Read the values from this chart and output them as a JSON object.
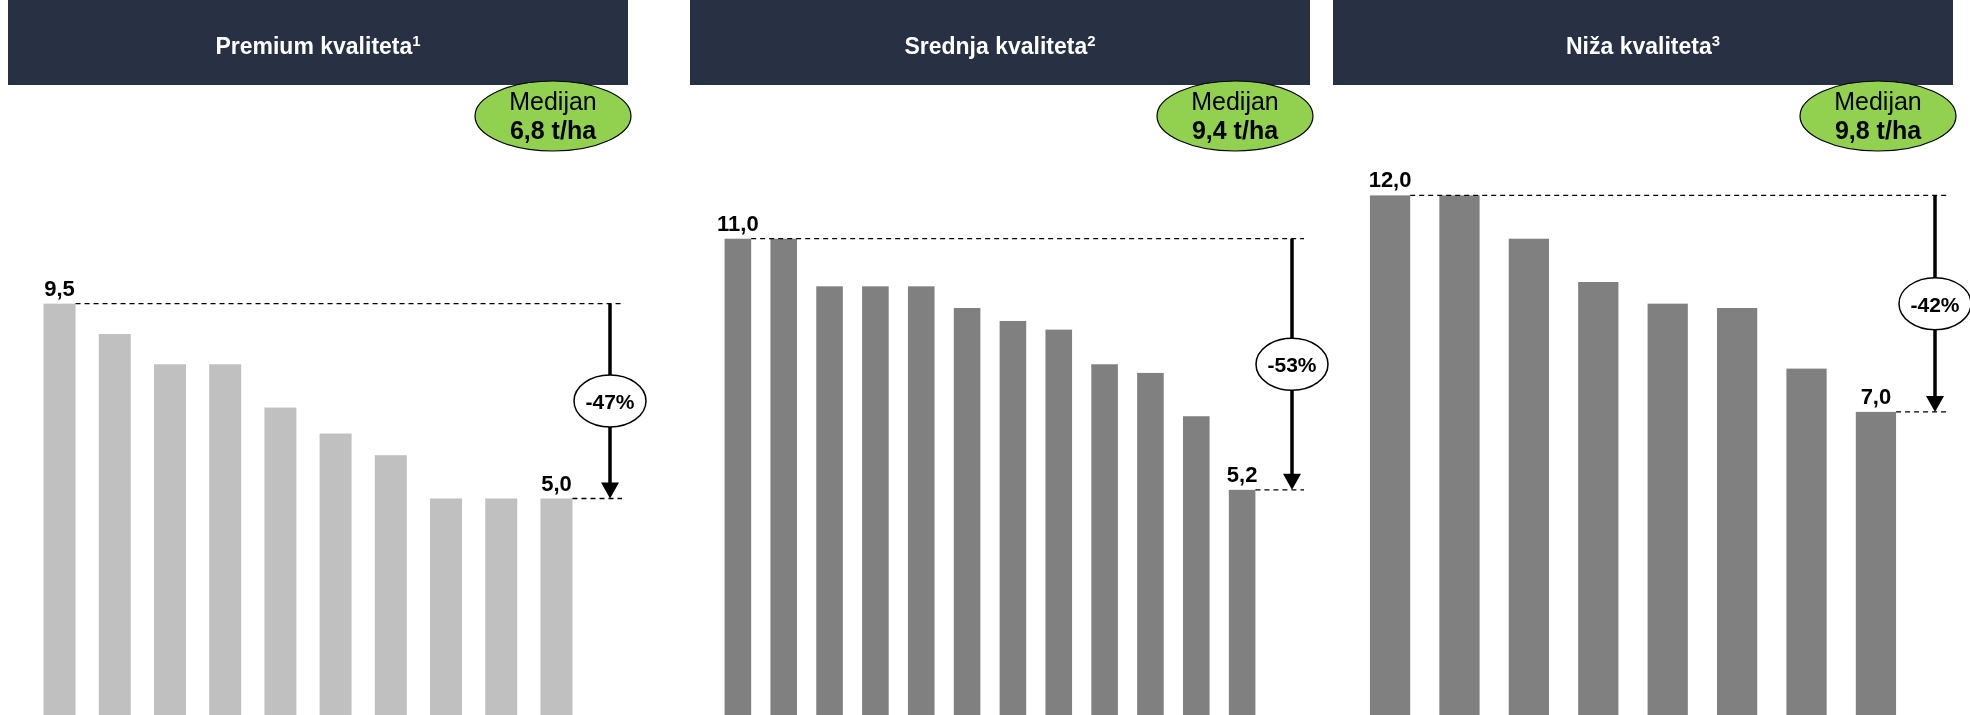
{
  "chart_data": [
    {
      "type": "bar",
      "title": "Premium kvaliteta$^{1}$",
      "categories": [
        null,
        null,
        null,
        null,
        null,
        null,
        null,
        null,
        null,
        null
      ],
      "values": [
        9.5,
        8.8,
        8.1,
        8.1,
        7.1,
        6.5,
        6.0,
        5.0,
        5.0,
        5.0
      ],
      "color": "#c0c0c0",
      "value_labels": [
        "9,5",
        null,
        null,
        null,
        null,
        null,
        null,
        null,
        null,
        "5,0"
      ],
      "annotations": [
        "Medijan",
        "6,8 t/ha",
        "-47%"
      ],
      "ref_lines": [
        {
          "axis": "y",
          "value": 9.5,
          "line_style": "dashed",
          "color": "#000000"
        },
        {
          "axis": "y",
          "value": 5.0,
          "line_style": "dashed",
          "color": "#000000"
        }
      ]
    },
    {
      "type": "bar",
      "title": "Srednja kvaliteta$^{2}$",
      "categories": [
        null,
        null,
        null,
        null,
        null,
        null,
        null,
        null,
        null,
        null,
        null,
        null
      ],
      "values": [
        11.0,
        11.0,
        9.9,
        9.9,
        9.9,
        9.4,
        9.1,
        8.9,
        8.1,
        7.9,
        6.9,
        5.2
      ],
      "color": "#808080",
      "value_labels": [
        "11,0",
        null,
        null,
        null,
        null,
        null,
        null,
        null,
        null,
        null,
        null,
        "5,2"
      ],
      "annotations": [
        "Medijan",
        "9,4 t/ha",
        "-53%"
      ],
      "ref_lines": [
        {
          "axis": "y",
          "value": 11.0,
          "line_style": "dashed",
          "color": "#000000"
        },
        {
          "axis": "y",
          "value": 5.2,
          "line_style": "dashed",
          "color": "#000000"
        }
      ]
    },
    {
      "type": "bar",
      "title": "Niža kvaliteta$^{3}$",
      "categories": [
        null,
        null,
        null,
        null,
        null,
        null,
        null,
        null
      ],
      "values": [
        12.0,
        12.0,
        11.0,
        10.0,
        9.5,
        9.4,
        8.0,
        7.0
      ],
      "color": "#808080",
      "value_labels": [
        "12,0",
        null,
        null,
        null,
        null,
        null,
        null,
        "7,0"
      ],
      "annotations": [
        "Medijan",
        "9,8 t/ha",
        "-42%"
      ],
      "ref_lines": [
        {
          "axis": "y",
          "value": 12.0,
          "line_style": "dashed",
          "color": "#000000"
        },
        {
          "axis": "y",
          "value": 7.0,
          "line_style": "dashed",
          "color": "#000000"
        }
      ]
    }
  ]
}
